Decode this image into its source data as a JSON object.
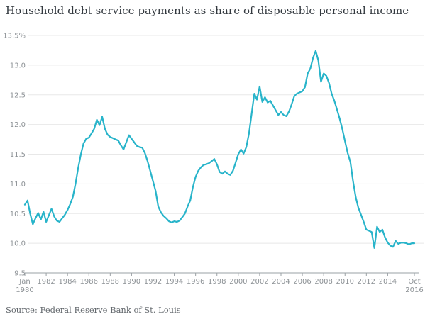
{
  "header": {
    "title": "Household debt service payments as share of disposable personal income"
  },
  "footer": {
    "source": "Source: Federal Reserve Bank of St. Louis"
  },
  "colors": {
    "line": "#28b4ca",
    "gridline": "#e8e8e8",
    "axis": "#9aa0a4",
    "tick_label": "#8d9296",
    "title_text": "#33393f",
    "source_text": "#63686d",
    "background": "#ffffff"
  },
  "chart_data": {
    "type": "line",
    "title": "Household debt service payments as share of disposable personal income",
    "xlabel": "",
    "ylabel": "",
    "grid": "horizontal",
    "legend": "none",
    "y_axis": {
      "min": 9.5,
      "max": 13.5,
      "ticks": [
        13.5,
        13.0,
        12.5,
        12.0,
        11.5,
        11.0,
        10.5,
        10.0,
        9.5
      ],
      "tick_labels": [
        "13.5%",
        "13.0",
        "12.5",
        "12.0",
        "11.5",
        "11.0",
        "10.5",
        "10.0",
        "9.5"
      ]
    },
    "x_axis": {
      "start_year": 1980,
      "start_label": "Jan|1980",
      "end_label": "Oct|2016",
      "year_ticks": [
        1982,
        1984,
        1986,
        1988,
        1990,
        1992,
        1994,
        1996,
        1998,
        2000,
        2002,
        2004,
        2006,
        2008,
        2010,
        2012,
        2014
      ]
    },
    "series": [
      {
        "name": "Household debt service payments as share of disposable personal income",
        "frequency": "quarterly",
        "start": "1980 Q1",
        "end": "2016 Q3",
        "color": "#28b4ca",
        "values": [
          10.65,
          10.72,
          10.5,
          10.32,
          10.42,
          10.51,
          10.4,
          10.53,
          10.36,
          10.47,
          10.58,
          10.45,
          10.38,
          10.36,
          10.42,
          10.48,
          10.56,
          10.66,
          10.78,
          11.0,
          11.27,
          11.5,
          11.68,
          11.76,
          11.78,
          11.85,
          11.93,
          12.08,
          11.99,
          12.13,
          11.93,
          11.83,
          11.79,
          11.77,
          11.75,
          11.73,
          11.65,
          11.58,
          11.7,
          11.82,
          11.76,
          11.7,
          11.64,
          11.62,
          11.61,
          11.52,
          11.38,
          11.22,
          11.05,
          10.88,
          10.62,
          10.52,
          10.46,
          10.42,
          10.37,
          10.35,
          10.37,
          10.36,
          10.38,
          10.44,
          10.5,
          10.62,
          10.72,
          10.95,
          11.12,
          11.22,
          11.28,
          11.32,
          11.33,
          11.35,
          11.38,
          11.42,
          11.33,
          11.2,
          11.17,
          11.21,
          11.17,
          11.15,
          11.22,
          11.36,
          11.5,
          11.58,
          11.51,
          11.62,
          11.85,
          12.18,
          12.52,
          12.42,
          12.64,
          12.38,
          12.46,
          12.37,
          12.4,
          12.32,
          12.24,
          12.16,
          12.21,
          12.16,
          12.14,
          12.22,
          12.34,
          12.48,
          12.52,
          12.54,
          12.56,
          12.63,
          12.86,
          12.94,
          13.12,
          13.24,
          13.08,
          12.72,
          12.86,
          12.82,
          12.7,
          12.52,
          12.4,
          12.25,
          12.1,
          11.92,
          11.72,
          11.52,
          11.37,
          11.05,
          10.78,
          10.6,
          10.48,
          10.36,
          10.23,
          10.21,
          10.19,
          9.92,
          10.28,
          10.19,
          10.23,
          10.1,
          10.01,
          9.96,
          9.94,
          10.04,
          9.99,
          10.01,
          10.01,
          10.0,
          9.98,
          10.0,
          10.0
        ]
      }
    ]
  }
}
